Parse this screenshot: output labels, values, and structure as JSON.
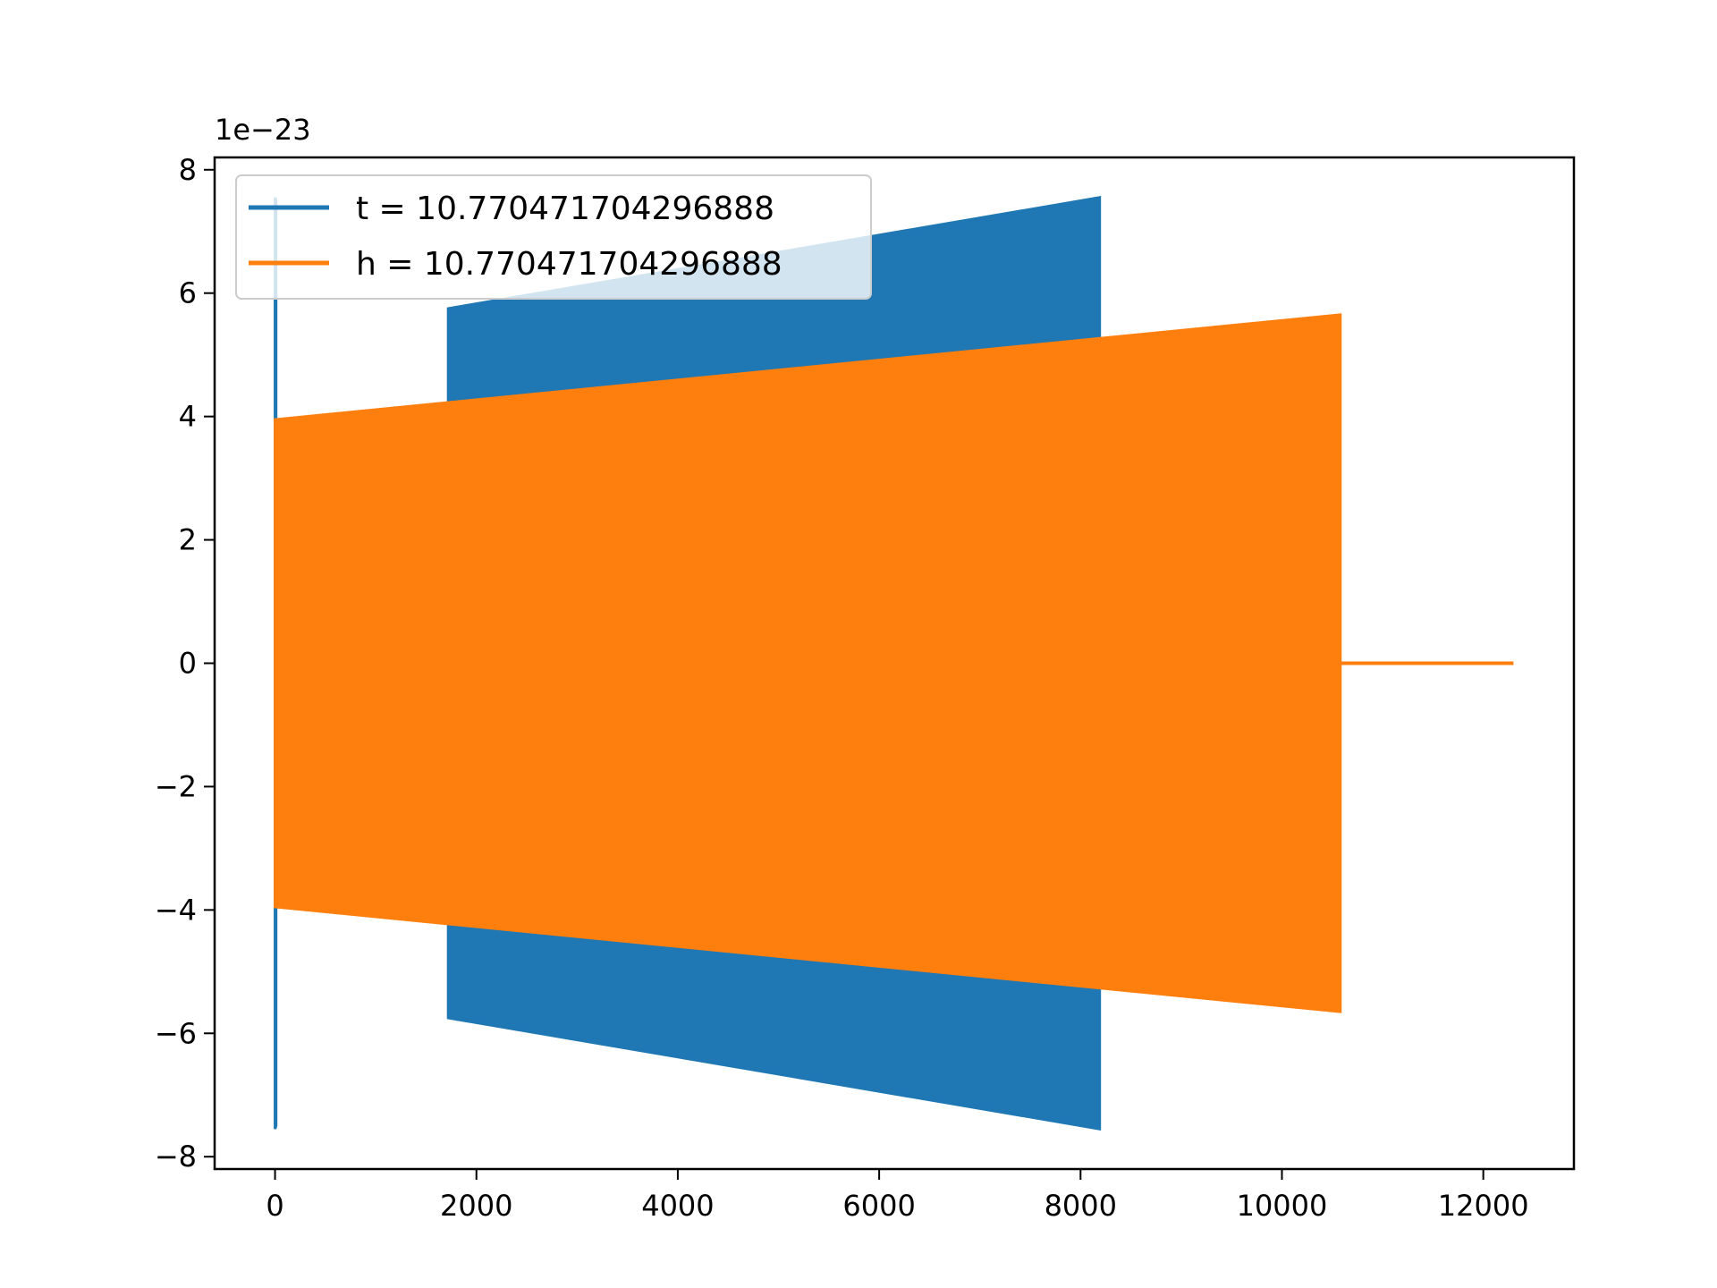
{
  "chart_data": {
    "type": "line",
    "title": "",
    "xlabel": "",
    "ylabel": "",
    "y_scale_label": "1e−23",
    "y_scale_factor": 1e-23,
    "xlim": [
      -600,
      12900
    ],
    "ylim": [
      -8.2,
      8.2
    ],
    "x_ticks": [
      0,
      2000,
      4000,
      6000,
      8000,
      10000,
      12000
    ],
    "x_tick_labels": [
      "0",
      "2000",
      "4000",
      "6000",
      "8000",
      "10000",
      "12000"
    ],
    "y_ticks": [
      -8,
      -6,
      -4,
      -2,
      0,
      2,
      4,
      6,
      8
    ],
    "y_tick_labels": [
      "−8",
      "−6",
      "−4",
      "−2",
      "0",
      "2",
      "4",
      "6",
      "8"
    ],
    "grid": false,
    "legend_position": "upper-left",
    "series": [
      {
        "name": "t = 10.770471704296888",
        "color": "#1f77b4",
        "segments": [
          {
            "x_start": 0,
            "x_end": 10,
            "amplitude_start": 7.55,
            "amplitude_end": 7.5
          },
          {
            "x_start": 1720,
            "x_end": 8190,
            "amplitude_start": 5.75,
            "amplitude_end": 7.55
          }
        ],
        "zero_after_x": 8190
      },
      {
        "name": "h = 10.770471704296888",
        "color": "#ff7f0e",
        "segments": [
          {
            "x_start": 0,
            "x_end": 10580,
            "amplitude_start": 3.95,
            "amplitude_end": 5.65
          }
        ],
        "zero_from_x": 10580,
        "zero_to_x": 12300
      }
    ]
  }
}
